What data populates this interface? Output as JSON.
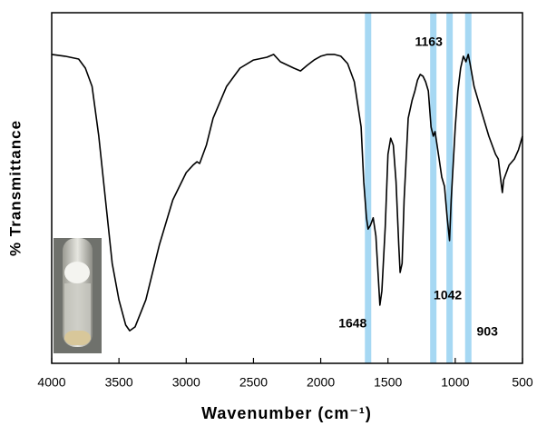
{
  "chart_data": {
    "type": "line",
    "x_label": "Wavenumber (cm⁻¹)",
    "y_label": "% Transmittance",
    "xlim": [
      4000,
      500
    ],
    "xticks": [
      4000,
      3500,
      3000,
      2500,
      2000,
      1500,
      1000,
      500
    ],
    "ylim": [
      0,
      100
    ],
    "highlights": [
      1648,
      1163,
      1042,
      903
    ],
    "highlight_color": "#a6d8f3",
    "series": [
      {
        "color": "#000000",
        "x": [
          4000,
          3900,
          3800,
          3750,
          3700,
          3650,
          3600,
          3550,
          3500,
          3450,
          3420,
          3380,
          3300,
          3200,
          3100,
          3000,
          2950,
          2920,
          2900,
          2850,
          2800,
          2700,
          2600,
          2500,
          2400,
          2350,
          2300,
          2200,
          2150,
          2100,
          2050,
          2000,
          1950,
          1900,
          1850,
          1800,
          1750,
          1700,
          1680,
          1660,
          1648,
          1630,
          1610,
          1590,
          1570,
          1560,
          1545,
          1520,
          1500,
          1480,
          1460,
          1440,
          1420,
          1410,
          1395,
          1380,
          1350,
          1320,
          1300,
          1280,
          1260,
          1240,
          1220,
          1200,
          1180,
          1163,
          1150,
          1120,
          1100,
          1080,
          1060,
          1042,
          1030,
          1000,
          980,
          960,
          940,
          920,
          903,
          890,
          860,
          800,
          750,
          700,
          680,
          660,
          650,
          640,
          620,
          600,
          560,
          530,
          500
        ],
        "values": [
          88.1,
          87.6,
          86.8,
          84.2,
          79.0,
          64.8,
          46.6,
          28.5,
          18.1,
          10.9,
          9.3,
          10.4,
          18.1,
          33.7,
          46.6,
          54.4,
          56.5,
          57.5,
          57.0,
          62.2,
          69.9,
          79.0,
          84.2,
          86.5,
          87.3,
          88.1,
          86.0,
          84.2,
          83.4,
          85.0,
          86.5,
          87.6,
          88.1,
          88.1,
          87.6,
          85.5,
          80.3,
          67.4,
          51.8,
          41.5,
          38.3,
          39.4,
          41.5,
          36.3,
          23.3,
          16.6,
          20.7,
          38.9,
          59.6,
          64.2,
          62.2,
          51.8,
          33.7,
          25.9,
          28.5,
          46.6,
          69.9,
          75.1,
          77.7,
          80.8,
          82.4,
          81.9,
          80.3,
          77.7,
          67.4,
          64.8,
          66.1,
          58.3,
          53.1,
          50.5,
          41.5,
          35.0,
          46.6,
          67.4,
          77.7,
          84.2,
          87.6,
          86.0,
          88.1,
          85.5,
          79.0,
          71.2,
          64.8,
          59.6,
          58.3,
          51.8,
          48.7,
          52.3,
          54.4,
          56.5,
          58.3,
          60.9,
          64.8
        ]
      }
    ]
  }
}
